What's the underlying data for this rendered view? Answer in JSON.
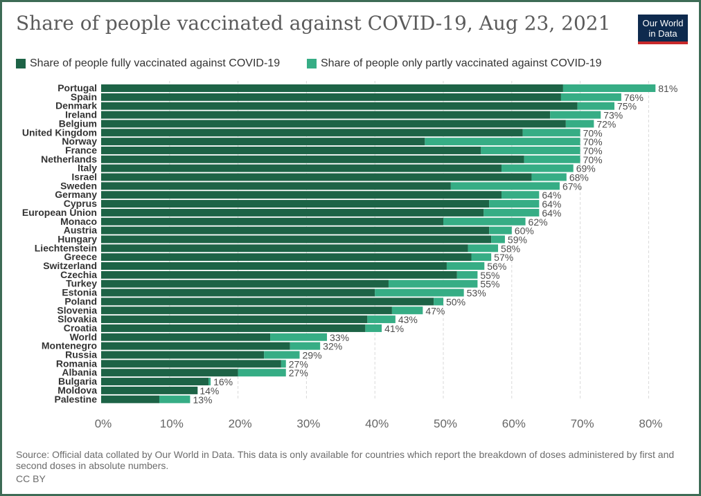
{
  "header": {
    "title": "Share of people vaccinated against COVID-19, Aug 23, 2021",
    "logo_line1": "Our World",
    "logo_line2": "in Data"
  },
  "colors": {
    "fully": "#1d6346",
    "partly": "#36ad85",
    "grid": "#d9d9d9",
    "label": "#333333",
    "value_label": "#4d4d4d"
  },
  "legend": {
    "fully": "Share of people fully vaccinated against COVID-19",
    "partly": "Share of people only partly vaccinated against COVID-19"
  },
  "footer": {
    "source": "Source: Official data collated by Our World in Data. This data is only available for countries which report the breakdown of doses administered by first and second doses in absolute numbers.",
    "license": "CC BY"
  },
  "chart_data": {
    "type": "bar",
    "orientation": "horizontal",
    "stacked": true,
    "title": "Share of people vaccinated against COVID-19, Aug 23, 2021",
    "xlim": [
      0,
      80
    ],
    "x_ticks": [
      "0%",
      "10%",
      "20%",
      "30%",
      "40%",
      "50%",
      "60%",
      "70%",
      "80%"
    ],
    "grid": true,
    "legend_position": "top",
    "categories": [
      "Portugal",
      "Spain",
      "Denmark",
      "Ireland",
      "Belgium",
      "United Kingdom",
      "Norway",
      "France",
      "Netherlands",
      "Italy",
      "Israel",
      "Sweden",
      "Germany",
      "Cyprus",
      "European Union",
      "Monaco",
      "Austria",
      "Hungary",
      "Liechtenstein",
      "Greece",
      "Switzerland",
      "Czechia",
      "Turkey",
      "Estonia",
      "Poland",
      "Slovenia",
      "Slovakia",
      "Croatia",
      "World",
      "Montenegro",
      "Russia",
      "Romania",
      "Albania",
      "Bulgaria",
      "Moldova",
      "Palestine"
    ],
    "series": [
      {
        "name": "Share of people fully vaccinated against COVID-19",
        "values": [
          67.5,
          67.2,
          69.6,
          65.6,
          67.9,
          61.6,
          47.3,
          55.5,
          61.8,
          58.5,
          62.9,
          51.1,
          58.5,
          56.7,
          55.9,
          50.0,
          56.7,
          57.0,
          53.6,
          54.1,
          50.5,
          52.0,
          42.0,
          40.0,
          48.6,
          42.5,
          38.9,
          38.6,
          24.7,
          27.6,
          23.8,
          26.3,
          20.0,
          15.7,
          14.1,
          8.5
        ]
      },
      {
        "name": "Share of people only partly vaccinated against COVID-19",
        "values": [
          13.5,
          8.8,
          5.4,
          7.4,
          4.1,
          8.4,
          22.7,
          14.5,
          8.2,
          10.5,
          5.1,
          15.9,
          5.5,
          7.3,
          8.1,
          12.0,
          3.3,
          2.0,
          4.4,
          2.9,
          5.5,
          3.0,
          13.0,
          13.0,
          1.4,
          4.5,
          4.1,
          2.4,
          8.3,
          4.4,
          5.2,
          0.7,
          7.0,
          0.3,
          0.0,
          4.5
        ]
      }
    ],
    "totals": [
      81,
      76,
      75,
      73,
      72,
      70,
      70,
      70,
      70,
      69,
      68,
      67,
      64,
      64,
      64,
      62,
      60,
      59,
      58,
      57,
      56,
      55,
      55,
      53,
      50,
      47,
      43,
      41,
      33,
      32,
      29,
      27,
      27,
      16,
      14,
      13
    ],
    "total_labels": [
      "81%",
      "76%",
      "75%",
      "73%",
      "72%",
      "70%",
      "70%",
      "70%",
      "70%",
      "69%",
      "68%",
      "67%",
      "64%",
      "64%",
      "64%",
      "62%",
      "60%",
      "59%",
      "58%",
      "57%",
      "56%",
      "55%",
      "55%",
      "53%",
      "50%",
      "47%",
      "43%",
      "41%",
      "33%",
      "32%",
      "29%",
      "27%",
      "27%",
      "16%",
      "14%",
      "13%"
    ]
  }
}
